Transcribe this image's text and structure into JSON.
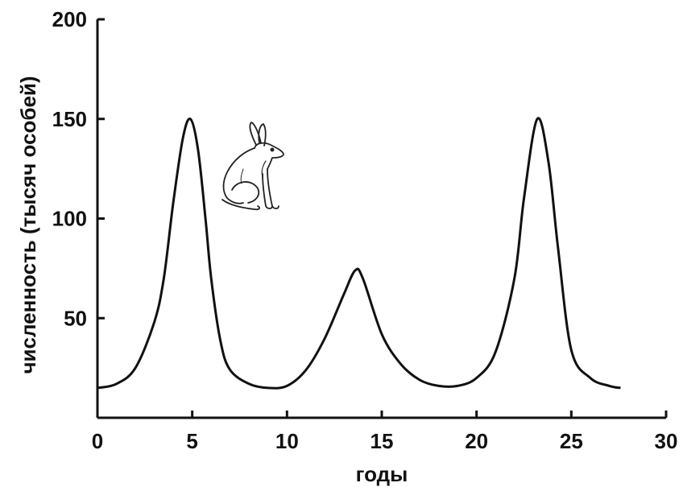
{
  "chart_data": {
    "type": "line",
    "title": "",
    "xlabel": "годы",
    "ylabel": "численность (тысяч особей)",
    "xlim": [
      0,
      30
    ],
    "ylim": [
      0,
      200
    ],
    "x_ticks": [
      0,
      5,
      10,
      15,
      20,
      25,
      30
    ],
    "y_ticks": [
      50,
      100,
      150,
      200
    ],
    "grid": false,
    "legend": "none",
    "line_color": "#111111",
    "icon": "hare-icon",
    "series": [
      {
        "x": [
          0,
          1,
          2,
          3,
          3.5,
          4,
          4.5,
          4.9,
          5.3,
          5.7,
          6,
          6.5,
          7,
          8,
          9,
          10,
          11,
          12,
          13,
          13.6,
          14,
          15,
          16,
          17,
          18,
          19,
          20,
          21,
          22,
          22.5,
          23.2,
          23.8,
          24.3,
          25,
          26,
          27,
          27.6
        ],
        "y": [
          15,
          17,
          25,
          48,
          70,
          108,
          140,
          150,
          135,
          100,
          70,
          38,
          24,
          17,
          15,
          16,
          24,
          40,
          62,
          74,
          70,
          42,
          27,
          19,
          16,
          16,
          20,
          33,
          70,
          110,
          150,
          128,
          85,
          34,
          20,
          16,
          15
        ]
      }
    ]
  }
}
